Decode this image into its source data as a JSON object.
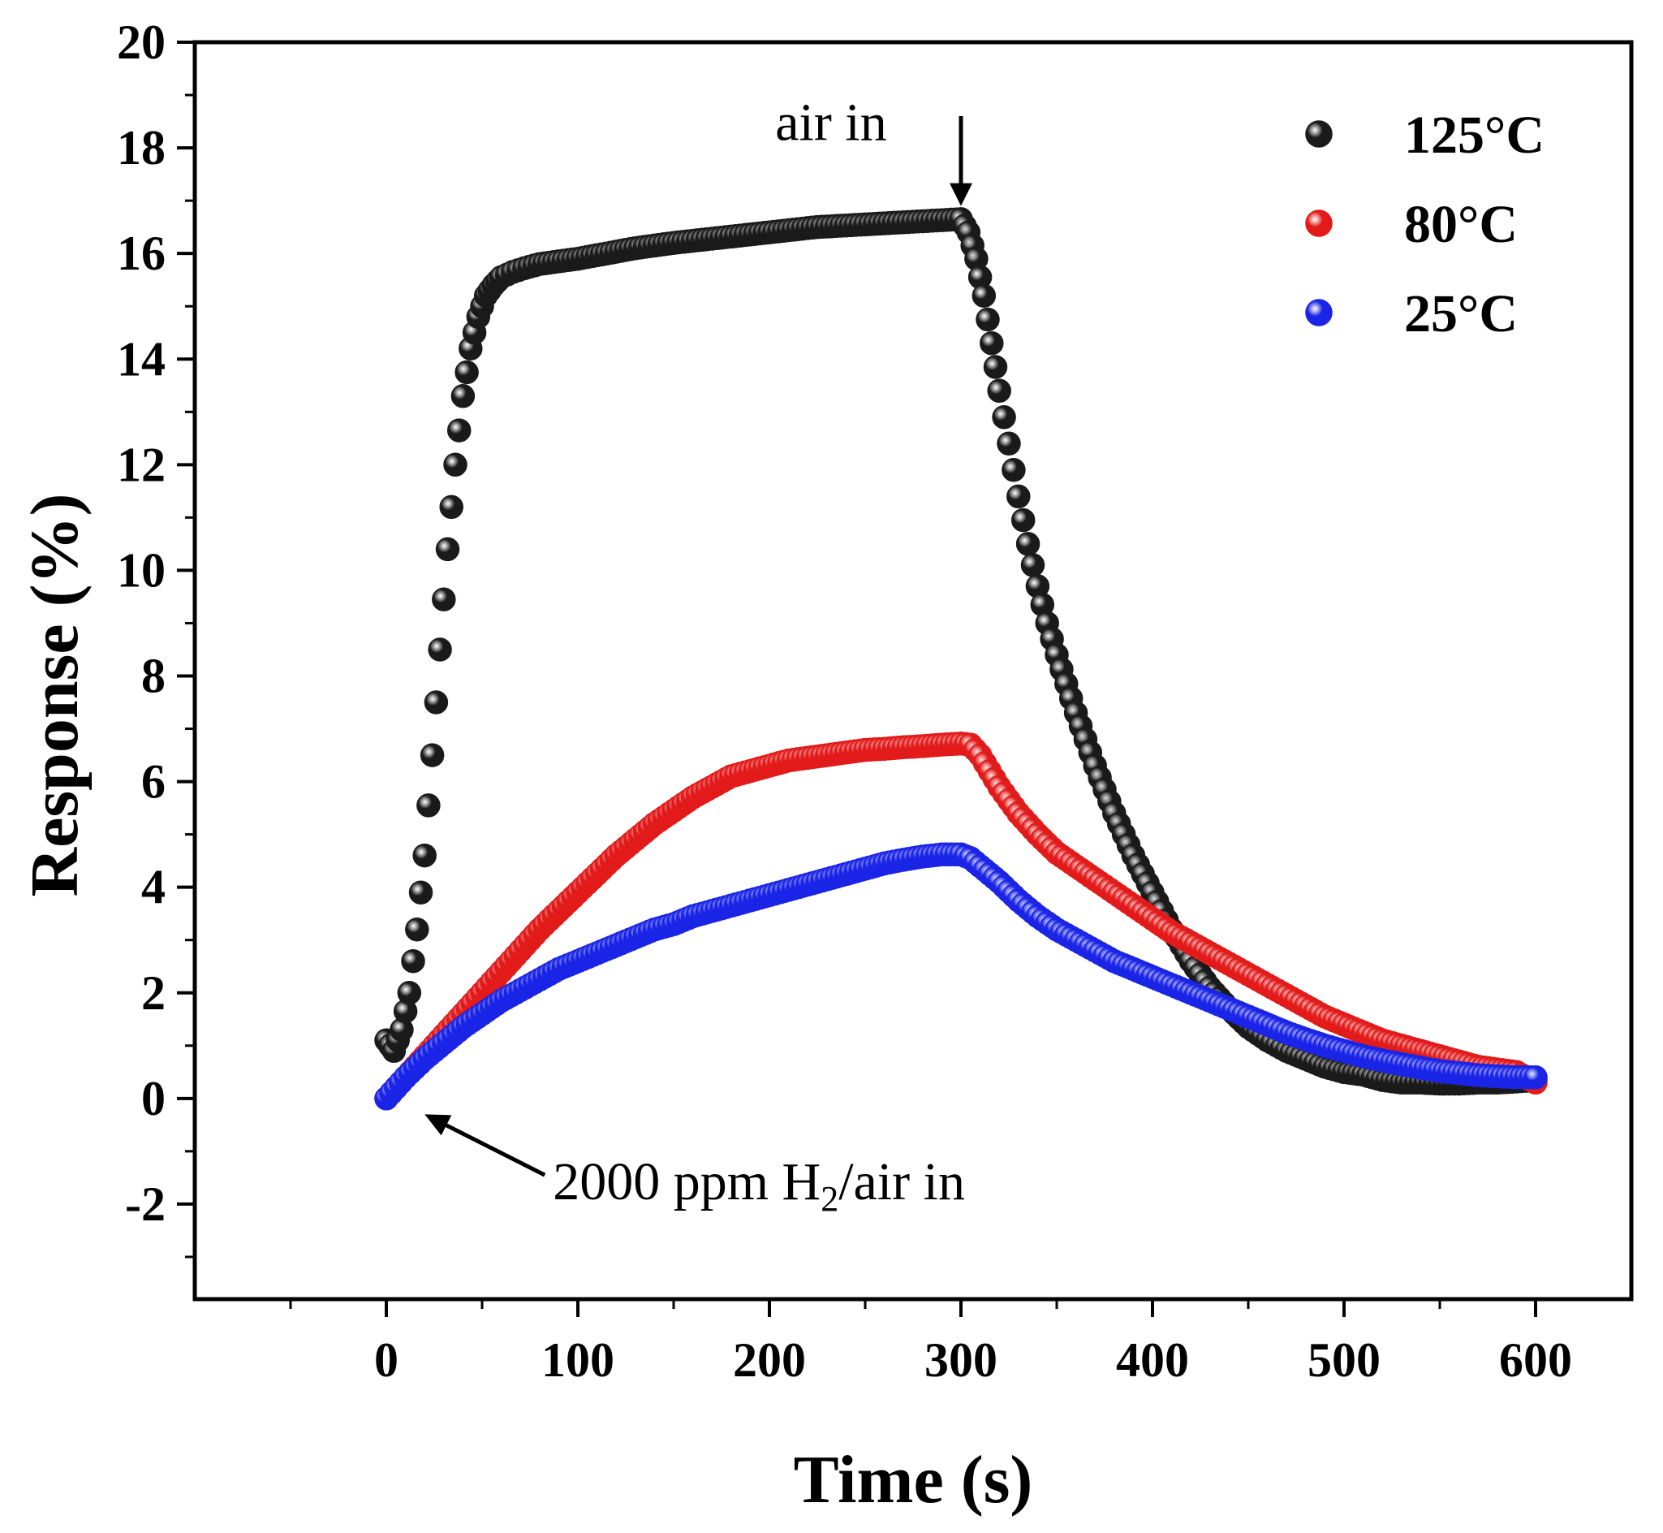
{
  "chart_data": {
    "type": "scatter",
    "title": "",
    "xlabel": "Time (s)",
    "ylabel": "Response (%)",
    "xlim": [
      -100,
      650
    ],
    "ylim": [
      -3.8,
      20
    ],
    "x_ticks": [
      0,
      100,
      200,
      300,
      400,
      500,
      600
    ],
    "y_ticks": [
      -2,
      0,
      2,
      4,
      6,
      8,
      10,
      12,
      14,
      16,
      18,
      20
    ],
    "x_tick_labels": [
      "0",
      "100",
      "200",
      "300",
      "400",
      "500",
      "600"
    ],
    "y_tick_labels": [
      "-2",
      "0",
      "2",
      "4",
      "6",
      "8",
      "10",
      "12",
      "14",
      "16",
      "18",
      "20"
    ],
    "grid": false,
    "legend_position": "top-right",
    "series": [
      {
        "name": "125°C",
        "color": "#1a1a1a",
        "x": [
          0,
          4,
          8,
          12,
          16,
          20,
          24,
          28,
          32,
          36,
          40,
          44,
          48,
          52,
          56,
          60,
          66,
          72,
          80,
          90,
          100,
          115,
          130,
          150,
          175,
          200,
          225,
          250,
          275,
          300,
          304,
          308,
          312,
          316,
          320,
          325,
          330,
          335,
          340,
          345,
          350,
          360,
          370,
          380,
          390,
          400,
          410,
          420,
          430,
          440,
          450,
          460,
          470,
          480,
          490,
          500,
          510,
          520,
          530,
          540,
          550,
          560,
          570,
          580,
          590,
          600
        ],
        "y": [
          1.1,
          0.9,
          1.3,
          2.0,
          3.2,
          4.6,
          6.5,
          8.5,
          10.4,
          12.0,
          13.3,
          14.2,
          14.8,
          15.2,
          15.4,
          15.55,
          15.65,
          15.72,
          15.8,
          15.85,
          15.9,
          16.0,
          16.1,
          16.2,
          16.3,
          16.4,
          16.5,
          16.55,
          16.6,
          16.65,
          16.4,
          15.9,
          15.2,
          14.3,
          13.4,
          12.4,
          11.4,
          10.5,
          9.7,
          9.0,
          8.4,
          7.3,
          6.3,
          5.4,
          4.6,
          3.9,
          3.2,
          2.6,
          2.1,
          1.7,
          1.35,
          1.1,
          0.9,
          0.75,
          0.6,
          0.5,
          0.45,
          0.35,
          0.3,
          0.3,
          0.28,
          0.28,
          0.3,
          0.3,
          0.32,
          0.35
        ]
      },
      {
        "name": "80°C",
        "color": "#e21a1a",
        "x": [
          0,
          10,
          20,
          30,
          40,
          50,
          60,
          70,
          80,
          90,
          100,
          110,
          120,
          130,
          140,
          150,
          160,
          170,
          180,
          190,
          200,
          210,
          220,
          230,
          240,
          250,
          260,
          270,
          280,
          290,
          300,
          305,
          310,
          315,
          320,
          330,
          340,
          350,
          360,
          370,
          380,
          390,
          400,
          410,
          420,
          430,
          440,
          450,
          460,
          470,
          480,
          490,
          500,
          510,
          520,
          530,
          540,
          550,
          560,
          570,
          580,
          590,
          600
        ],
        "y": [
          0.0,
          0.4,
          0.8,
          1.2,
          1.6,
          2.0,
          2.4,
          2.8,
          3.2,
          3.55,
          3.9,
          4.25,
          4.6,
          4.9,
          5.2,
          5.45,
          5.7,
          5.9,
          6.1,
          6.2,
          6.3,
          6.4,
          6.45,
          6.5,
          6.55,
          6.6,
          6.62,
          6.65,
          6.67,
          6.7,
          6.72,
          6.7,
          6.5,
          6.2,
          5.9,
          5.4,
          5.0,
          4.65,
          4.4,
          4.15,
          3.9,
          3.65,
          3.4,
          3.15,
          2.95,
          2.75,
          2.55,
          2.35,
          2.15,
          1.95,
          1.75,
          1.55,
          1.4,
          1.25,
          1.1,
          1.0,
          0.9,
          0.8,
          0.7,
          0.6,
          0.55,
          0.5,
          0.3
        ]
      },
      {
        "name": "25°C",
        "color": "#1a24e6",
        "x": [
          0,
          10,
          20,
          30,
          40,
          50,
          60,
          70,
          80,
          90,
          100,
          110,
          120,
          130,
          140,
          150,
          160,
          170,
          180,
          190,
          200,
          210,
          220,
          230,
          240,
          250,
          260,
          270,
          280,
          290,
          300,
          305,
          310,
          320,
          330,
          340,
          350,
          360,
          370,
          380,
          390,
          400,
          410,
          420,
          430,
          440,
          450,
          460,
          470,
          480,
          490,
          500,
          510,
          520,
          530,
          540,
          550,
          560,
          570,
          580,
          590,
          600
        ],
        "y": [
          0.0,
          0.4,
          0.75,
          1.05,
          1.35,
          1.6,
          1.85,
          2.05,
          2.25,
          2.45,
          2.6,
          2.75,
          2.9,
          3.05,
          3.2,
          3.3,
          3.45,
          3.55,
          3.65,
          3.75,
          3.85,
          3.95,
          4.05,
          4.15,
          4.25,
          4.35,
          4.45,
          4.52,
          4.58,
          4.62,
          4.62,
          4.55,
          4.4,
          4.1,
          3.75,
          3.45,
          3.2,
          3.0,
          2.8,
          2.6,
          2.45,
          2.3,
          2.15,
          2.0,
          1.85,
          1.7,
          1.55,
          1.4,
          1.25,
          1.12,
          1.0,
          0.9,
          0.8,
          0.72,
          0.65,
          0.58,
          0.52,
          0.48,
          0.44,
          0.42,
          0.4,
          0.4
        ]
      }
    ],
    "annotations": [
      {
        "id": "air_in",
        "text": "air in",
        "x": 300,
        "y": 18.3,
        "arrow_to": [
          300,
          16.9
        ]
      },
      {
        "id": "h2_in",
        "text_before": "2000 ppm H",
        "text_sub": "2",
        "text_after": "/air in",
        "x": 70,
        "y": -1.6,
        "arrow_to": [
          20,
          -0.3
        ]
      }
    ]
  }
}
